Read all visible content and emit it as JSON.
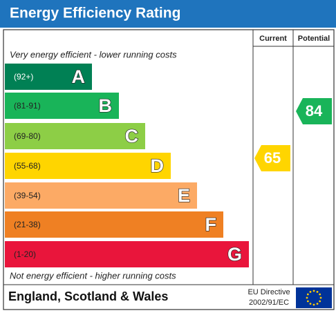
{
  "title": "Energy Efficiency Rating",
  "columns": {
    "current": "Current",
    "potential": "Potential"
  },
  "top_note": "Very energy efficient - lower running costs",
  "bottom_note": "Not energy efficient - higher running costs",
  "bands": [
    {
      "range": "(92+)",
      "letter": "A",
      "color": "#008054"
    },
    {
      "range": "(81-91)",
      "letter": "B",
      "color": "#19b459"
    },
    {
      "range": "(69-80)",
      "letter": "C",
      "color": "#8dce46"
    },
    {
      "range": "(55-68)",
      "letter": "D",
      "color": "#ffd500"
    },
    {
      "range": "(39-54)",
      "letter": "E",
      "color": "#fcaa65"
    },
    {
      "range": "(21-38)",
      "letter": "F",
      "color": "#ef8023"
    },
    {
      "range": "(1-20)",
      "letter": "G",
      "color": "#e9153b"
    }
  ],
  "current": {
    "value": 65,
    "color": "#ffd500"
  },
  "potential": {
    "value": 84,
    "color": "#19b459"
  },
  "footer": {
    "region": "England, Scotland & Wales",
    "directive": [
      "EU Directive",
      "2002/91/EC"
    ]
  }
}
